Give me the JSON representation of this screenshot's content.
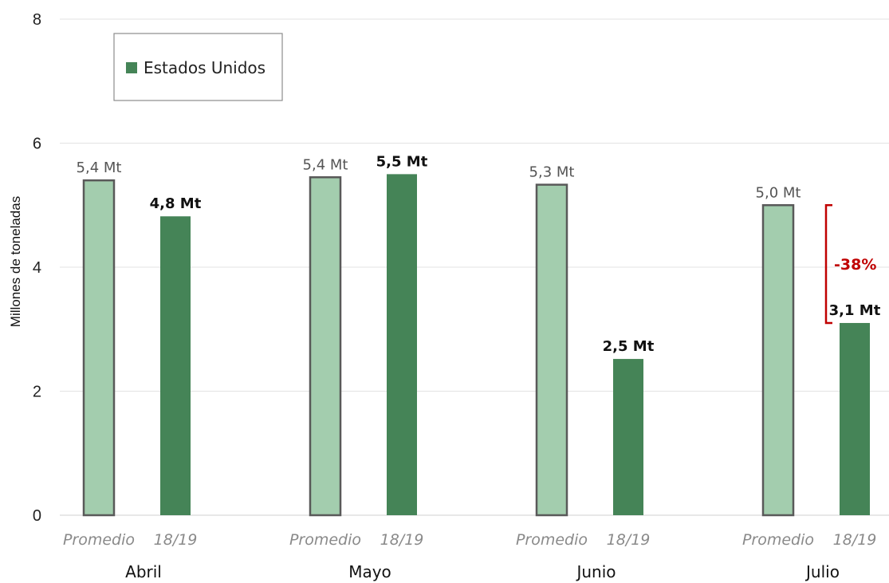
{
  "chart_data": {
    "type": "bar",
    "title": "",
    "ylabel": "Millones de toneladas",
    "xlabel": "",
    "ylim": [
      0,
      8
    ],
    "yticks": [
      0,
      2,
      4,
      6,
      8
    ],
    "grid": true,
    "legend": {
      "position": "top-left",
      "entries": [
        "Estados Unidos"
      ]
    },
    "categories": [
      "Abril",
      "Mayo",
      "Junio",
      "Julio"
    ],
    "sub_categories": [
      "Promedio",
      "18/19"
    ],
    "series": [
      {
        "key": "promedio",
        "name": "Promedio",
        "color": "#a3cdae",
        "border": "#595959",
        "values": [
          5.4,
          5.45,
          5.33,
          5.0
        ],
        "labels": [
          "5,4 Mt",
          "5,4 Mt",
          "5,3 Mt",
          "5,0 Mt"
        ]
      },
      {
        "key": "current",
        "name": "18/19",
        "color": "#458457",
        "values": [
          4.82,
          5.5,
          2.52,
          3.1
        ],
        "labels": [
          "4,8 Mt",
          "5,5 Mt",
          "2,5 Mt",
          "3,1 Mt"
        ]
      }
    ],
    "annotations": [
      {
        "text": "-38%",
        "category": "Julio",
        "from": 5.0,
        "to": 3.1,
        "color": "#c00000"
      }
    ]
  }
}
